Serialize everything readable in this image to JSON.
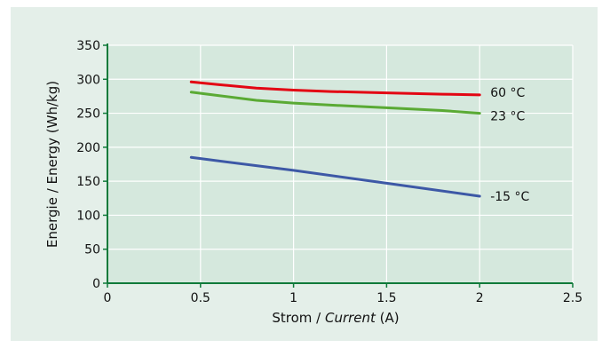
{
  "chart_data": {
    "type": "line",
    "title": "",
    "xlabel_prefix": "Strom / ",
    "xlabel_italic": "Current",
    "xlabel_suffix": " (A)",
    "ylabel": "Energie / Energy (Wh/kg)",
    "xlim": [
      0,
      2.5
    ],
    "ylim": [
      0,
      350
    ],
    "xticks": [
      0,
      0.5,
      1,
      1.5,
      2,
      2.5
    ],
    "xtick_labels": [
      "0",
      "0.5",
      "1",
      "1.5",
      "2",
      "2.5"
    ],
    "yticks": [
      0,
      50,
      100,
      150,
      200,
      250,
      300,
      350
    ],
    "ytick_labels": [
      "0",
      "50",
      "100",
      "150",
      "200",
      "250",
      "300",
      "350"
    ],
    "grid": true,
    "plot_background": "#d5e8dd",
    "series": [
      {
        "name": "60 °C",
        "color": "#e30613",
        "x": [
          0.45,
          0.6,
          0.8,
          1.0,
          1.2,
          1.5,
          1.8,
          2.0
        ],
        "y": [
          296,
          292,
          287,
          284,
          282,
          280,
          278,
          277
        ]
      },
      {
        "name": "23 °C",
        "color": "#5aaa34",
        "x": [
          0.45,
          0.6,
          0.8,
          1.0,
          1.2,
          1.5,
          1.8,
          2.0
        ],
        "y": [
          281,
          276,
          269,
          265,
          262,
          258,
          254,
          250
        ]
      },
      {
        "name": "-15 °C",
        "color": "#3d58a6",
        "x": [
          0.45,
          1.0,
          1.5,
          2.0
        ],
        "y": [
          185,
          166,
          147,
          128
        ]
      }
    ]
  }
}
